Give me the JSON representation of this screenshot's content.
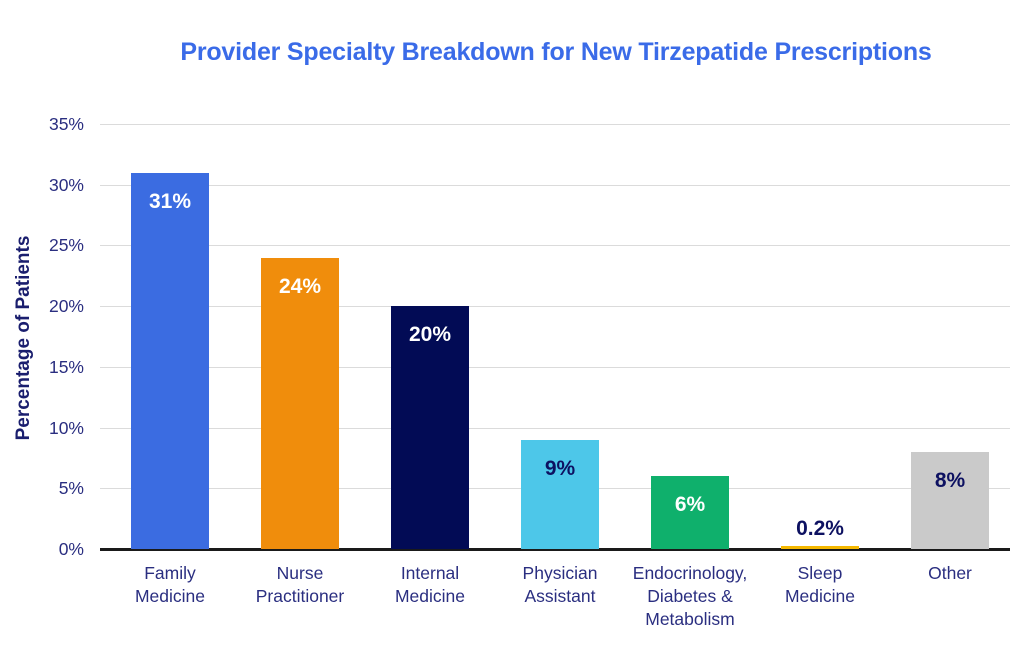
{
  "chart_data": {
    "type": "bar",
    "title": "Provider Specialty Breakdown for New Tirzepatide Prescriptions",
    "xlabel": "",
    "ylabel": "Percentage of Patients",
    "ylim": [
      0,
      35
    ],
    "ytick_step": 5,
    "ytick_labels": [
      "0%",
      "5%",
      "10%",
      "15%",
      "20%",
      "25%",
      "30%",
      "35%"
    ],
    "grid": true,
    "legend": "none",
    "categories": [
      "Family\nMedicine",
      "Nurse\nPractitioner",
      "Internal\nMedicine",
      "Physician\nAssistant",
      "Endocrinology,\nDiabetes &\nMetabolism",
      "Sleep\nMedicine",
      "Other"
    ],
    "values": [
      31,
      24,
      20,
      9,
      6,
      0.2,
      8
    ],
    "value_labels": [
      "31%",
      "24%",
      "20%",
      "9%",
      "6%",
      "0.2%",
      "8%"
    ],
    "bar_colors": [
      "#3B6CE1",
      "#F08D0C",
      "#020B55",
      "#4DC7E9",
      "#0FB06C",
      "#F5B800",
      "#CACACA"
    ],
    "value_label_colors": [
      "#FFFFFF",
      "#FFFFFF",
      "#FFFFFF",
      "#0D1161",
      "#FFFFFF",
      "#0D1161",
      "#0D1161"
    ],
    "value_label_placement": [
      "inside",
      "inside",
      "inside",
      "inside",
      "inside",
      "above",
      "inside"
    ],
    "colors": {
      "title": "#3A6BE8",
      "axis_text": "#2A2E80",
      "y_axis_title_text": "#1A1E6E",
      "axis_line": "#1A1A1A",
      "gridline": "#DBDBDB",
      "background": "#FFFFFF"
    }
  }
}
